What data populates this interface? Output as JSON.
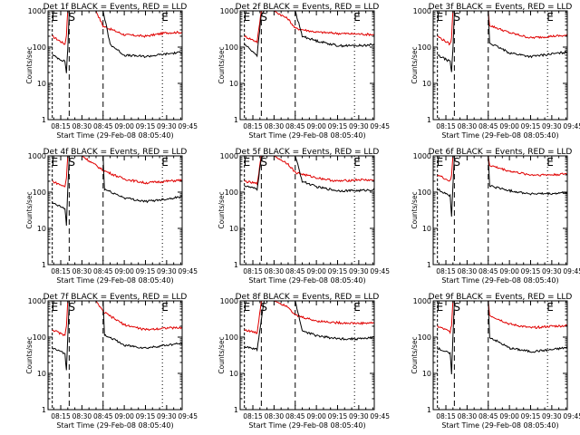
{
  "colors": {
    "events": "#000000",
    "lld": "#e00000",
    "axis": "#000000"
  },
  "chart_data": [
    {
      "type": "line",
      "title": "Det 1f BLACK = Events, RED = LLD",
      "xlabel": "Start Time (29-Feb-08 08:05:40)",
      "ylabel": "Counts/sec",
      "y_scale": "log",
      "ylim": [
        1,
        1000
      ],
      "yticks": [
        "1",
        "10",
        "100",
        "1000"
      ],
      "xticks": [
        "08:15",
        "08:30",
        "08:45",
        "09:00",
        "09:15",
        "09:30",
        "09:45"
      ],
      "markers": [
        {
          "label": "E",
          "t": "08:09"
        },
        {
          "label": "S",
          "t": "08:21"
        },
        {
          "label": "E",
          "t": "09:27"
        }
      ],
      "series": [
        {
          "series_role": "lld",
          "x": [
            "08:09",
            "08:18",
            "08:19",
            "08:20",
            "08:21",
            "08:30",
            "08:36",
            "08:40",
            "08:45",
            "09:00",
            "09:15",
            "09:30",
            "09:45"
          ],
          "y": [
            200,
            120,
            220,
            1000,
            1000,
            1000,
            1000,
            1000,
            380,
            220,
            200,
            250,
            260
          ]
        },
        {
          "series_role": "events",
          "x": [
            "08:09",
            "08:18",
            "08:19",
            "08:20",
            "08:21",
            "08:30",
            "08:45",
            "08:50",
            "09:00",
            "09:15",
            "09:30",
            "09:45"
          ],
          "y": [
            60,
            40,
            20,
            90,
            1000,
            1000,
            1000,
            120,
            60,
            55,
            65,
            75
          ]
        }
      ]
    },
    {
      "type": "line",
      "title": "Det 2f BLACK = Events, RED = LLD",
      "xlabel": "Start Time (29-Feb-08 08:05:40)",
      "ylabel": "Counts/sec",
      "y_scale": "log",
      "ylim": [
        1,
        1000
      ],
      "yticks": [
        "1",
        "10",
        "100",
        "1000"
      ],
      "xticks": [
        "08:15",
        "08:30",
        "08:45",
        "09:00",
        "09:15",
        "09:30",
        "09:45"
      ],
      "markers": [
        {
          "label": "E",
          "t": "08:09"
        },
        {
          "label": "S",
          "t": "08:21"
        },
        {
          "label": "E",
          "t": "09:27"
        }
      ],
      "series": [
        {
          "series_role": "lld",
          "x": [
            "08:09",
            "08:18",
            "08:21",
            "08:23",
            "08:30",
            "08:40",
            "08:45",
            "09:00",
            "09:15",
            "09:30",
            "09:45"
          ],
          "y": [
            200,
            140,
            1000,
            1000,
            1000,
            600,
            330,
            260,
            240,
            230,
            220
          ]
        },
        {
          "series_role": "events",
          "x": [
            "08:09",
            "08:18",
            "08:21",
            "08:23",
            "08:30",
            "08:40",
            "08:45",
            "08:50",
            "09:00",
            "09:15",
            "09:30",
            "09:45"
          ],
          "y": [
            120,
            60,
            800,
            1000,
            1000,
            1000,
            1000,
            200,
            150,
            110,
            110,
            120
          ]
        }
      ]
    },
    {
      "type": "line",
      "title": "Det 3f BLACK = Events, RED = LLD",
      "xlabel": "Start Time (29-Feb-08 08:05:40)",
      "ylabel": "Counts/sec",
      "y_scale": "log",
      "ylim": [
        1,
        1000
      ],
      "yticks": [
        "1",
        "10",
        "100",
        "1000"
      ],
      "xticks": [
        "08:15",
        "08:30",
        "08:45",
        "09:00",
        "09:15",
        "09:30",
        "09:45"
      ],
      "markers": [
        {
          "label": "E",
          "t": "08:09"
        },
        {
          "label": "S",
          "t": "08:21"
        },
        {
          "label": "E",
          "t": "09:27"
        }
      ],
      "series": [
        {
          "series_role": "lld",
          "x": [
            "08:09",
            "08:18",
            "08:19",
            "08:20",
            "08:21",
            "08:30",
            "08:45",
            "08:46",
            "09:00",
            "09:15",
            "09:30",
            "09:45"
          ],
          "y": [
            200,
            120,
            180,
            1000,
            1000,
            1000,
            1000,
            400,
            250,
            180,
            200,
            210
          ]
        },
        {
          "series_role": "events",
          "x": [
            "08:09",
            "08:18",
            "08:19",
            "08:20",
            "08:21",
            "08:30",
            "08:45",
            "08:46",
            "09:00",
            "09:15",
            "09:30",
            "09:45"
          ],
          "y": [
            60,
            40,
            20,
            90,
            1000,
            1000,
            1000,
            130,
            70,
            55,
            65,
            75
          ]
        }
      ]
    },
    {
      "type": "line",
      "title": "Det 4f BLACK = Events, RED = LLD",
      "xlabel": "Start Time (29-Feb-08 08:05:40)",
      "ylabel": "Counts/sec",
      "y_scale": "log",
      "ylim": [
        1,
        1000
      ],
      "yticks": [
        "1",
        "10",
        "100",
        "1000"
      ],
      "xticks": [
        "08:15",
        "08:30",
        "08:45",
        "09:00",
        "09:15",
        "09:30",
        "09:45"
      ],
      "markers": [
        {
          "label": "E",
          "t": "08:09"
        },
        {
          "label": "S",
          "t": "08:21"
        },
        {
          "label": "E",
          "t": "09:27"
        }
      ],
      "series": [
        {
          "series_role": "lld",
          "x": [
            "08:09",
            "08:18",
            "08:19",
            "08:20",
            "08:21",
            "08:30",
            "08:45",
            "09:00",
            "09:15",
            "09:30",
            "09:45"
          ],
          "y": [
            200,
            140,
            250,
            1000,
            1000,
            1000,
            400,
            230,
            180,
            200,
            220
          ]
        },
        {
          "series_role": "events",
          "x": [
            "08:09",
            "08:18",
            "08:19",
            "08:20",
            "08:21",
            "08:30",
            "08:45",
            "08:46",
            "09:00",
            "09:15",
            "09:30",
            "09:45"
          ],
          "y": [
            50,
            35,
            12,
            120,
            1000,
            1000,
            1000,
            120,
            70,
            55,
            65,
            80
          ]
        }
      ]
    },
    {
      "type": "line",
      "title": "Det 5f BLACK = Events, RED = LLD",
      "xlabel": "Start Time (29-Feb-08 08:05:40)",
      "ylabel": "Counts/sec",
      "y_scale": "log",
      "ylim": [
        1,
        1000
      ],
      "yticks": [
        "1",
        "10",
        "100",
        "1000"
      ],
      "xticks": [
        "08:15",
        "08:30",
        "08:45",
        "09:00",
        "09:15",
        "09:30",
        "09:45"
      ],
      "markers": [
        {
          "label": "E",
          "t": "08:09"
        },
        {
          "label": "S",
          "t": "08:21"
        },
        {
          "label": "E",
          "t": "09:27"
        }
      ],
      "series": [
        {
          "series_role": "lld",
          "x": [
            "08:09",
            "08:18",
            "08:21",
            "08:23",
            "08:30",
            "08:40",
            "08:45",
            "09:00",
            "09:15",
            "09:30",
            "09:45"
          ],
          "y": [
            200,
            170,
            1000,
            1000,
            1000,
            600,
            350,
            250,
            200,
            220,
            210
          ]
        },
        {
          "series_role": "events",
          "x": [
            "08:09",
            "08:18",
            "08:21",
            "08:23",
            "08:30",
            "08:40",
            "08:45",
            "08:50",
            "09:00",
            "09:15",
            "09:30",
            "09:45"
          ],
          "y": [
            150,
            120,
            900,
            1000,
            1000,
            1000,
            1000,
            200,
            140,
            110,
            110,
            120
          ]
        }
      ]
    },
    {
      "type": "line",
      "title": "Det 6f BLACK = Events, RED = LLD",
      "xlabel": "Start Time (29-Feb-08 08:05:40)",
      "ylabel": "Counts/sec",
      "y_scale": "log",
      "ylim": [
        1,
        1000
      ],
      "yticks": [
        "1",
        "10",
        "100",
        "1000"
      ],
      "xticks": [
        "08:15",
        "08:30",
        "08:45",
        "09:00",
        "09:15",
        "09:30",
        "09:45"
      ],
      "markers": [
        {
          "label": "E",
          "t": "08:09"
        },
        {
          "label": "S",
          "t": "08:21"
        },
        {
          "label": "E",
          "t": "09:27"
        }
      ],
      "series": [
        {
          "series_role": "lld",
          "x": [
            "08:09",
            "08:18",
            "08:19",
            "08:20",
            "08:21",
            "08:30",
            "08:45",
            "08:46",
            "09:00",
            "09:15",
            "09:30",
            "09:45"
          ],
          "y": [
            300,
            200,
            280,
            1000,
            1000,
            1000,
            1000,
            550,
            380,
            300,
            300,
            330
          ]
        },
        {
          "series_role": "events",
          "x": [
            "08:09",
            "08:18",
            "08:19",
            "08:20",
            "08:21",
            "08:30",
            "08:45",
            "08:46",
            "09:00",
            "09:15",
            "09:30",
            "09:45"
          ],
          "y": [
            120,
            80,
            20,
            150,
            1000,
            1000,
            1000,
            150,
            110,
            90,
            90,
            100
          ]
        }
      ]
    },
    {
      "type": "line",
      "title": "Det 7f BLACK = Events, RED = LLD",
      "xlabel": "Start Time (29-Feb-08 08:05:40)",
      "ylabel": "Counts/sec",
      "y_scale": "log",
      "ylim": [
        1,
        1000
      ],
      "yticks": [
        "1",
        "10",
        "100",
        "1000"
      ],
      "xticks": [
        "08:15",
        "08:30",
        "08:45",
        "09:00",
        "09:15",
        "09:30",
        "09:45"
      ],
      "markers": [
        {
          "label": "E",
          "t": "08:09"
        },
        {
          "label": "S",
          "t": "08:21"
        },
        {
          "label": "E",
          "t": "09:27"
        }
      ],
      "series": [
        {
          "series_role": "lld",
          "x": [
            "08:09",
            "08:18",
            "08:19",
            "08:20",
            "08:21",
            "08:30",
            "08:40",
            "08:45",
            "09:00",
            "09:15",
            "09:30",
            "09:45"
          ],
          "y": [
            160,
            110,
            200,
            1000,
            1000,
            1000,
            1000,
            500,
            220,
            160,
            180,
            180
          ]
        },
        {
          "series_role": "events",
          "x": [
            "08:09",
            "08:18",
            "08:19",
            "08:20",
            "08:21",
            "08:30",
            "08:45",
            "08:46",
            "09:00",
            "09:15",
            "09:30",
            "09:45"
          ],
          "y": [
            50,
            35,
            12,
            100,
            1000,
            1000,
            1000,
            120,
            60,
            50,
            60,
            70
          ]
        }
      ]
    },
    {
      "type": "line",
      "title": "Det 8f BLACK = Events, RED = LLD",
      "xlabel": "Start Time (29-Feb-08 08:05:40)",
      "ylabel": "Counts/sec",
      "y_scale": "log",
      "ylim": [
        1,
        1000
      ],
      "yticks": [
        "1",
        "10",
        "100",
        "1000"
      ],
      "xticks": [
        "08:15",
        "08:30",
        "08:45",
        "09:00",
        "09:15",
        "09:30",
        "09:45"
      ],
      "markers": [
        {
          "label": "E",
          "t": "08:09"
        },
        {
          "label": "S",
          "t": "08:21"
        },
        {
          "label": "E",
          "t": "09:27"
        }
      ],
      "series": [
        {
          "series_role": "lld",
          "x": [
            "08:09",
            "08:18",
            "08:21",
            "08:23",
            "08:30",
            "08:40",
            "08:45",
            "09:00",
            "09:15",
            "09:30",
            "09:45"
          ],
          "y": [
            160,
            130,
            1000,
            1000,
            1000,
            700,
            400,
            280,
            250,
            240,
            250
          ]
        },
        {
          "series_role": "events",
          "x": [
            "08:09",
            "08:18",
            "08:21",
            "08:23",
            "08:30",
            "08:40",
            "08:45",
            "08:50",
            "09:00",
            "09:15",
            "09:30",
            "09:45"
          ],
          "y": [
            55,
            45,
            300,
            1000,
            1000,
            1000,
            1000,
            150,
            110,
            90,
            90,
            100
          ]
        }
      ]
    },
    {
      "type": "line",
      "title": "Det 9f BLACK = Events, RED = LLD",
      "xlabel": "Start Time (29-Feb-08 08:05:40)",
      "ylabel": "Counts/sec",
      "y_scale": "log",
      "ylim": [
        1,
        1000
      ],
      "yticks": [
        "1",
        "10",
        "100",
        "1000"
      ],
      "xticks": [
        "08:15",
        "08:30",
        "08:45",
        "09:00",
        "09:15",
        "09:30",
        "09:45"
      ],
      "markers": [
        {
          "label": "E",
          "t": "08:09"
        },
        {
          "label": "S",
          "t": "08:21"
        },
        {
          "label": "E",
          "t": "09:27"
        }
      ],
      "series": [
        {
          "series_role": "lld",
          "x": [
            "08:09",
            "08:18",
            "08:19",
            "08:20",
            "08:21",
            "08:30",
            "08:45",
            "08:46",
            "09:00",
            "09:15",
            "09:30",
            "09:45"
          ],
          "y": [
            200,
            140,
            220,
            1000,
            1000,
            1000,
            1000,
            400,
            230,
            180,
            200,
            210
          ]
        },
        {
          "series_role": "events",
          "x": [
            "08:09",
            "08:18",
            "08:19",
            "08:20",
            "08:21",
            "08:30",
            "08:45",
            "08:46",
            "09:00",
            "09:15",
            "09:30",
            "09:45"
          ],
          "y": [
            50,
            35,
            10,
            100,
            1000,
            1000,
            1000,
            100,
            50,
            40,
            45,
            55
          ]
        }
      ]
    }
  ]
}
